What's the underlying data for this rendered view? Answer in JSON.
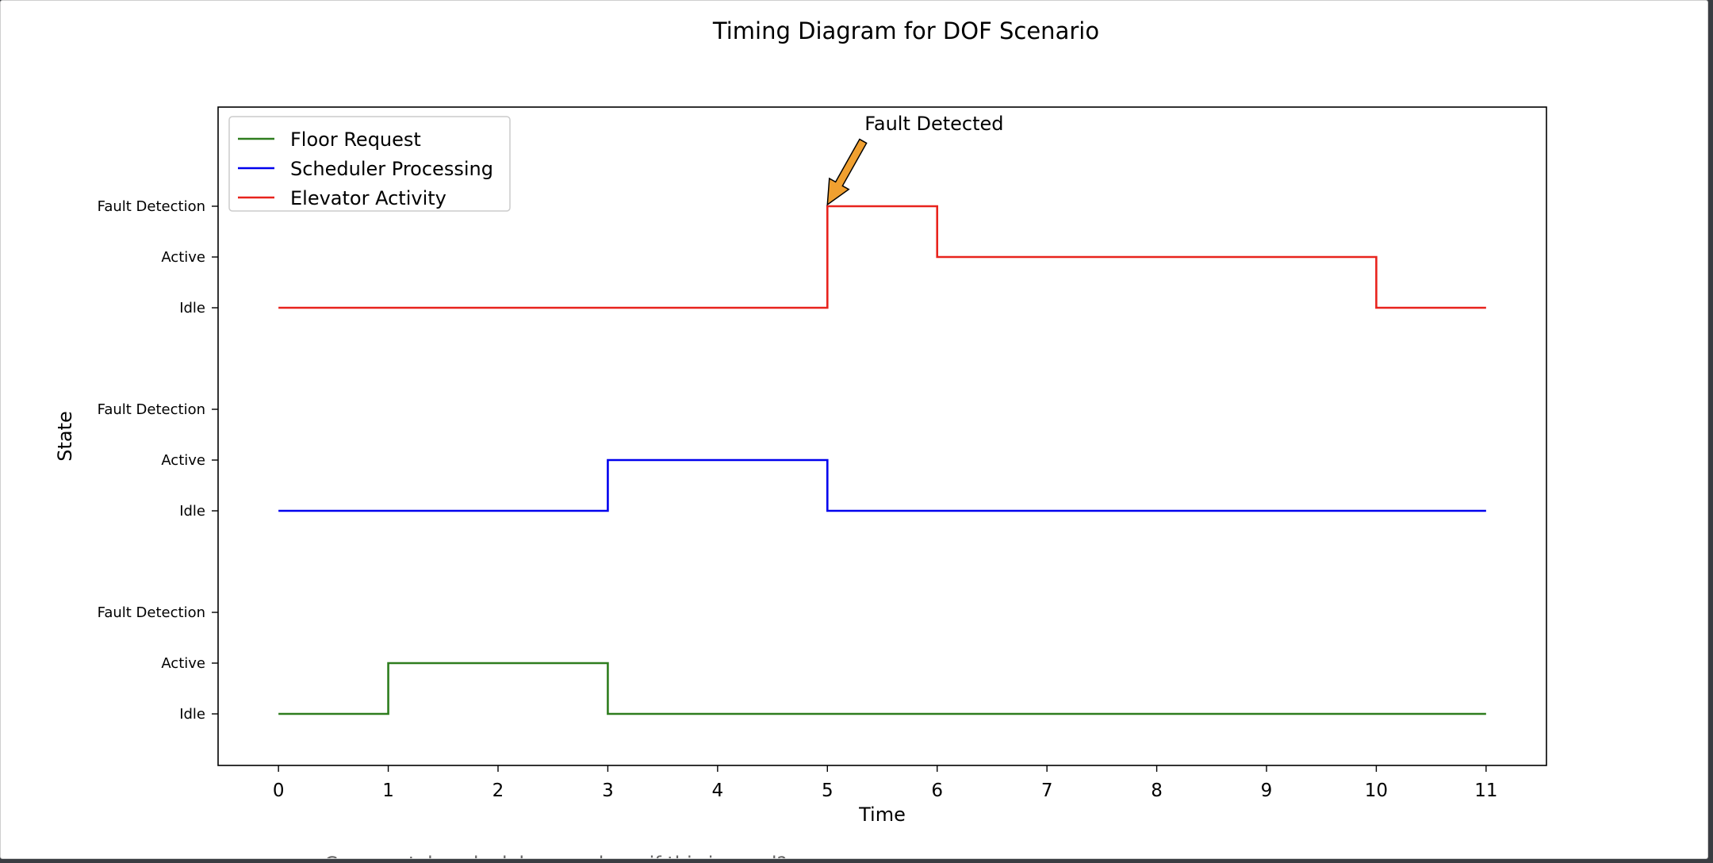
{
  "chart_data": {
    "type": "line",
    "step": "post",
    "title": "Timing Diagram for DOF Scenario",
    "xlabel": "Time",
    "ylabel": "State",
    "x_ticks": [
      0,
      1,
      2,
      3,
      4,
      5,
      6,
      7,
      8,
      9,
      10,
      11
    ],
    "xlim": [
      -0.55,
      11.55
    ],
    "state_labels": [
      "Idle",
      "Active",
      "Fault Detection"
    ],
    "lanes": [
      {
        "name": "Floor Request",
        "color": "#2e7d1e",
        "x": [
          0,
          1,
          3,
          11
        ],
        "states": [
          "Idle",
          "Active",
          "Idle",
          "Idle"
        ]
      },
      {
        "name": "Scheduler Processing",
        "color": "#0000ee",
        "x": [
          0,
          3,
          5,
          11
        ],
        "states": [
          "Idle",
          "Active",
          "Idle",
          "Idle"
        ]
      },
      {
        "name": "Elevator Activity",
        "color": "#e8231d",
        "x": [
          0,
          5,
          6,
          10,
          11
        ],
        "states": [
          "Idle",
          "Fault Detection",
          "Active",
          "Idle",
          "Idle"
        ]
      }
    ],
    "annotation": {
      "text": "Fault Detected",
      "x": 5,
      "lane": "Elevator Activity",
      "state": "Fault Detection",
      "arrow_color": "#f0a030"
    },
    "legend": {
      "placement": "top-left"
    },
    "grid": false
  },
  "background_text": "Can you take a look here and see if this is good?"
}
